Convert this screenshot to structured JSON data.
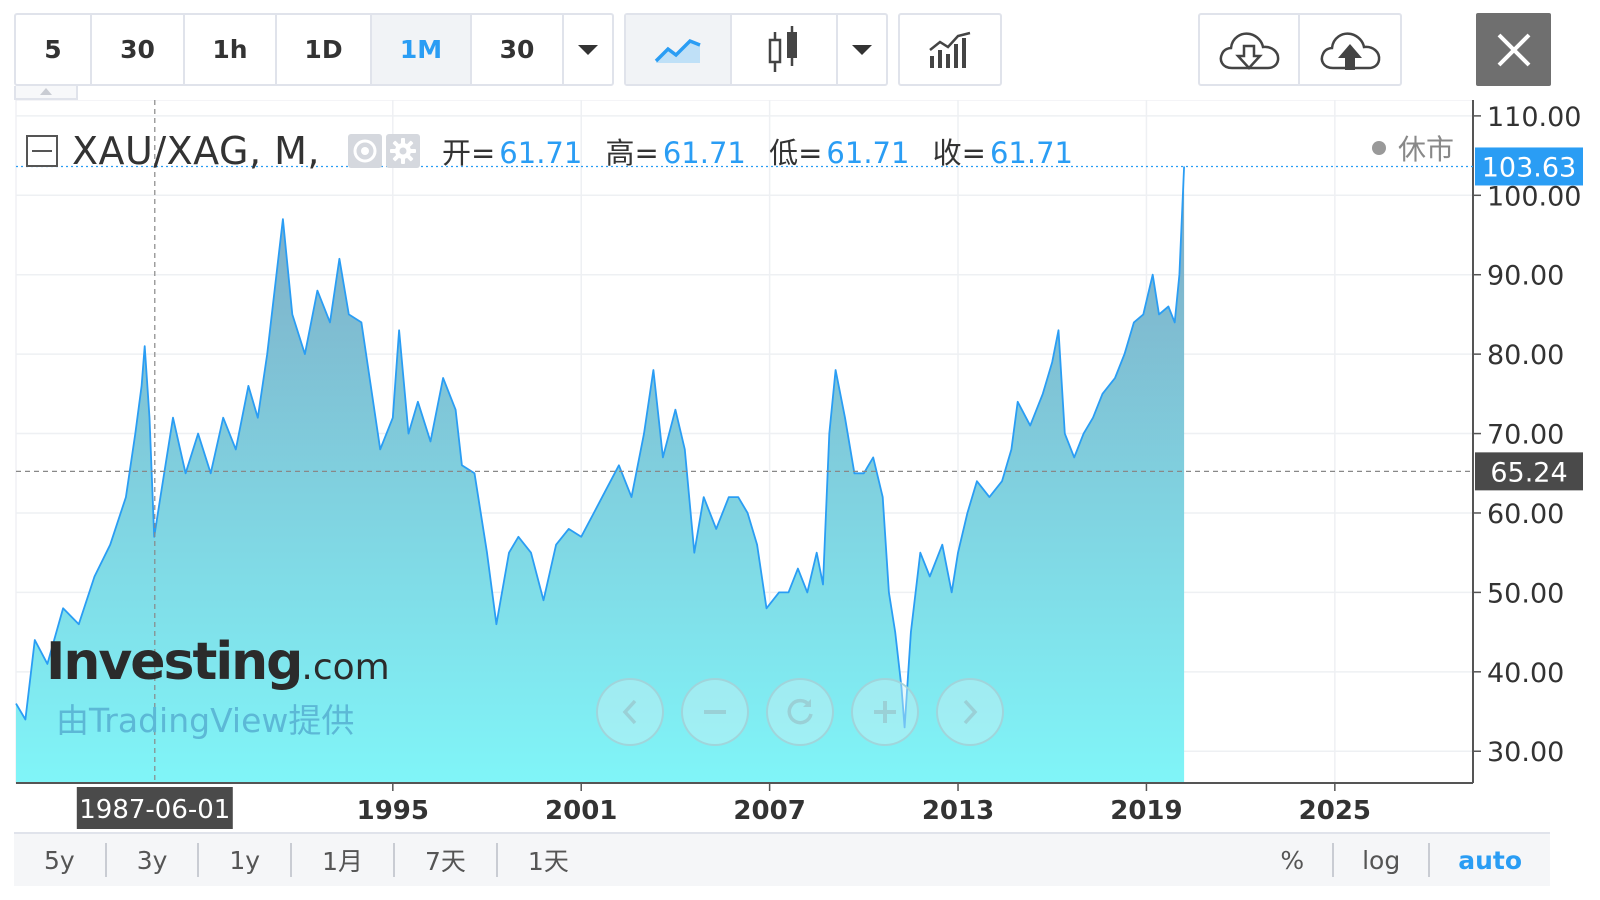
{
  "toolbar": {
    "intervals": [
      "5",
      "30",
      "1h",
      "1D",
      "1M",
      "30"
    ],
    "active_interval": "1M",
    "icons": [
      "dropdown-icon",
      "area-chart-icon",
      "candlestick-icon",
      "dropdown-icon",
      "indicators-icon",
      "cloud-download-icon",
      "cloud-upload-icon",
      "close-icon"
    ]
  },
  "legend": {
    "symbol": "XAU/XAG, M,",
    "open_label": "开=",
    "open_value": "61.71",
    "high_label": "高=",
    "high_value": "61.71",
    "low_label": "低=",
    "low_value": "61.71",
    "close_label": "收=",
    "close_value": "61.71",
    "market_status": "休市"
  },
  "watermark": {
    "brand": "Investing",
    "brand_suffix": ".com",
    "provider": "由TradingView提供"
  },
  "bottom_bar": {
    "ranges": [
      "5y",
      "3y",
      "1y",
      "1月",
      "7天",
      "1天"
    ],
    "options": [
      "%",
      "log",
      "auto"
    ],
    "active_option": "auto"
  },
  "colors": {
    "line": "#2a9df4",
    "fill_top": "#7fa9c4",
    "fill_bottom": "#80f5f8",
    "price_tag": "#2a9df4",
    "crosshair_tag": "#4a4a4a"
  },
  "chart_data": {
    "type": "area",
    "y_ticks": [
      "110.00",
      "100.00",
      "90.00",
      "80.00",
      "70.00",
      "60.00",
      "50.00",
      "40.00",
      "30.00"
    ],
    "ylim": [
      26,
      112
    ],
    "x_ticks": [
      "1995",
      "2001",
      "2007",
      "2013",
      "2019",
      "2025"
    ],
    "xlim": [
      1983.0,
      2029.4
    ],
    "last_price": "103.63",
    "last_price_value": 103.63,
    "crosshair_price": "65.24",
    "crosshair_price_value": 65.24,
    "crosshair_date": "1987-06-01",
    "crosshair_x": 1987.42,
    "series": [
      {
        "values": [
          [
            1983.0,
            36
          ],
          [
            1983.3,
            34
          ],
          [
            1983.6,
            44
          ],
          [
            1984.0,
            41
          ],
          [
            1984.5,
            48
          ],
          [
            1985.0,
            46
          ],
          [
            1985.5,
            52
          ],
          [
            1986.0,
            56
          ],
          [
            1986.5,
            62
          ],
          [
            1986.8,
            70
          ],
          [
            1987.0,
            76
          ],
          [
            1987.1,
            81
          ],
          [
            1987.25,
            72
          ],
          [
            1987.4,
            57
          ],
          [
            1987.6,
            62
          ],
          [
            1988.0,
            72
          ],
          [
            1988.4,
            65
          ],
          [
            1988.8,
            70
          ],
          [
            1989.2,
            65
          ],
          [
            1989.6,
            72
          ],
          [
            1990.0,
            68
          ],
          [
            1990.4,
            76
          ],
          [
            1990.7,
            72
          ],
          [
            1991.0,
            80
          ],
          [
            1991.5,
            97
          ],
          [
            1991.8,
            85
          ],
          [
            1992.2,
            80
          ],
          [
            1992.6,
            88
          ],
          [
            1993.0,
            84
          ],
          [
            1993.3,
            92
          ],
          [
            1993.6,
            85
          ],
          [
            1994.0,
            84
          ],
          [
            1994.3,
            76
          ],
          [
            1994.6,
            68
          ],
          [
            1995.0,
            72
          ],
          [
            1995.2,
            83
          ],
          [
            1995.5,
            70
          ],
          [
            1995.8,
            74
          ],
          [
            1996.2,
            69
          ],
          [
            1996.6,
            77
          ],
          [
            1997.0,
            73
          ],
          [
            1997.2,
            66
          ],
          [
            1997.6,
            65
          ],
          [
            1998.0,
            55
          ],
          [
            1998.3,
            46
          ],
          [
            1998.7,
            55
          ],
          [
            1999.0,
            57
          ],
          [
            1999.4,
            55
          ],
          [
            1999.8,
            49
          ],
          [
            2000.2,
            56
          ],
          [
            2000.6,
            58
          ],
          [
            2001.0,
            57
          ],
          [
            2001.4,
            60
          ],
          [
            2001.8,
            63
          ],
          [
            2002.2,
            66
          ],
          [
            2002.6,
            62
          ],
          [
            2003.0,
            70
          ],
          [
            2003.3,
            78
          ],
          [
            2003.6,
            67
          ],
          [
            2004.0,
            73
          ],
          [
            2004.3,
            68
          ],
          [
            2004.6,
            55
          ],
          [
            2004.9,
            62
          ],
          [
            2005.3,
            58
          ],
          [
            2005.7,
            62
          ],
          [
            2006.0,
            62
          ],
          [
            2006.3,
            60
          ],
          [
            2006.6,
            56
          ],
          [
            2006.9,
            48
          ],
          [
            2007.3,
            50
          ],
          [
            2007.6,
            50
          ],
          [
            2007.9,
            53
          ],
          [
            2008.2,
            50
          ],
          [
            2008.5,
            55
          ],
          [
            2008.7,
            51
          ],
          [
            2008.9,
            70
          ],
          [
            2009.1,
            78
          ],
          [
            2009.4,
            72
          ],
          [
            2009.7,
            65
          ],
          [
            2010.0,
            65
          ],
          [
            2010.3,
            67
          ],
          [
            2010.6,
            62
          ],
          [
            2010.8,
            50
          ],
          [
            2011.0,
            45
          ],
          [
            2011.2,
            38
          ],
          [
            2011.3,
            33
          ],
          [
            2011.5,
            45
          ],
          [
            2011.8,
            55
          ],
          [
            2012.1,
            52
          ],
          [
            2012.5,
            56
          ],
          [
            2012.8,
            50
          ],
          [
            2013.0,
            55
          ],
          [
            2013.3,
            60
          ],
          [
            2013.6,
            64
          ],
          [
            2014.0,
            62
          ],
          [
            2014.4,
            64
          ],
          [
            2014.7,
            68
          ],
          [
            2014.9,
            74
          ],
          [
            2015.3,
            71
          ],
          [
            2015.7,
            75
          ],
          [
            2016.0,
            79
          ],
          [
            2016.2,
            83
          ],
          [
            2016.4,
            70
          ],
          [
            2016.7,
            67
          ],
          [
            2017.0,
            70
          ],
          [
            2017.3,
            72
          ],
          [
            2017.6,
            75
          ],
          [
            2018.0,
            77
          ],
          [
            2018.3,
            80
          ],
          [
            2018.6,
            84
          ],
          [
            2018.9,
            85
          ],
          [
            2019.2,
            90
          ],
          [
            2019.4,
            85
          ],
          [
            2019.7,
            86
          ],
          [
            2019.9,
            84
          ],
          [
            2020.05,
            90
          ],
          [
            2020.2,
            103.63
          ]
        ]
      }
    ]
  }
}
